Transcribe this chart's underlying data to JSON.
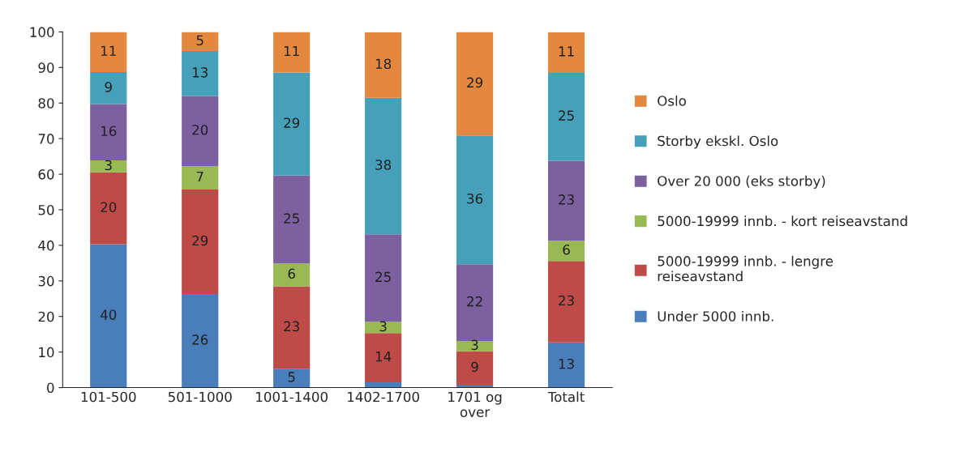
{
  "chart_data": {
    "type": "bar",
    "stacked": true,
    "categories": [
      "101-500",
      "501-1000",
      "1001-1400",
      "1402-1700",
      "1701 og\nover",
      "Totalt"
    ],
    "series": [
      {
        "name": "Under 5000 innb.",
        "color": "#4a7ebb",
        "values": [
          40.3,
          26.3,
          5.3,
          1.5,
          0.8,
          12.7
        ],
        "value_labels": [
          "40",
          "26",
          "5",
          null,
          null,
          "13"
        ]
      },
      {
        "name": "5000-19999 innb. - lengre\nreiseavstand",
        "color": "#be4b48",
        "values": [
          20.2,
          29.4,
          23.2,
          13.8,
          9.4,
          22.9
        ],
        "value_labels": [
          "20",
          "29",
          "23",
          "14",
          "9",
          "23"
        ]
      },
      {
        "name": "5000-19999 innb. - kort reiseavstand",
        "color": "#98b954",
        "values": [
          3.4,
          6.6,
          6.4,
          3.2,
          2.9,
          5.7
        ],
        "value_labels": [
          "3",
          "7",
          "6",
          "3",
          "3",
          "6"
        ]
      },
      {
        "name": "Over 20 000 (eks storby)",
        "color": "#7d60a0",
        "values": [
          15.8,
          19.7,
          24.7,
          24.6,
          21.6,
          22.5
        ],
        "value_labels": [
          "16",
          "20",
          "25",
          "25",
          "22",
          "23"
        ]
      },
      {
        "name": "Storby ekskl. Oslo",
        "color": "#46a0b9",
        "values": [
          9.0,
          12.6,
          29.0,
          38.4,
          36.2,
          24.7
        ],
        "value_labels": [
          "9",
          "13",
          "29",
          "38",
          "36",
          "25"
        ]
      },
      {
        "name": "Oslo",
        "color": "#e4883f",
        "values": [
          11.3,
          5.4,
          11.4,
          18.4,
          29.1,
          11.4
        ],
        "value_labels": [
          "11",
          "5",
          "11",
          "18",
          "29",
          "11"
        ]
      }
    ],
    "ylim": [
      0,
      100
    ],
    "yticks": [
      0,
      10,
      20,
      30,
      40,
      50,
      60,
      70,
      80,
      90,
      100
    ],
    "grid": false,
    "legend": "right"
  }
}
